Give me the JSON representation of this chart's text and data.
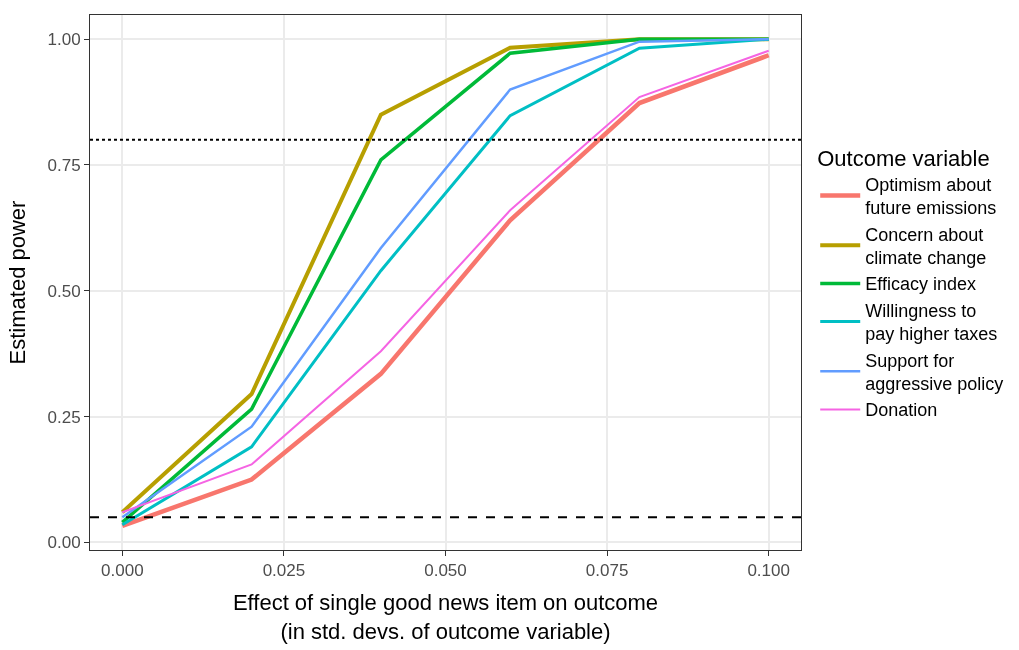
{
  "chart_data": {
    "type": "line",
    "xlabel": "Effect of single good news item on outcome\n(in std. devs. of outcome variable)",
    "ylabel": "Estimated power",
    "legend_title": "Outcome variable",
    "x": [
      0,
      0.02,
      0.04,
      0.06,
      0.08,
      0.1
    ],
    "series": [
      {
        "name": "Optimism about\nfuture emissions",
        "color": "#f8766d",
        "values": [
          0.033,
          0.125,
          0.335,
          0.64,
          0.873,
          0.968
        ]
      },
      {
        "name": "Concern about\nclimate change",
        "color": "#b79f00",
        "values": [
          0.06,
          0.295,
          0.85,
          0.983,
          1.0,
          1.0
        ]
      },
      {
        "name": "Efficacy index",
        "color": "#00ba38",
        "values": [
          0.04,
          0.265,
          0.76,
          0.972,
          1.0,
          1.0
        ]
      },
      {
        "name": "Willingness to\npay higher taxes",
        "color": "#00bfc4",
        "values": [
          0.035,
          0.19,
          0.54,
          0.848,
          0.982,
          1.0
        ]
      },
      {
        "name": "Support for\naggressive policy",
        "color": "#619cff",
        "values": [
          0.05,
          0.23,
          0.585,
          0.9,
          0.995,
          1.0
        ]
      },
      {
        "name": "Donation",
        "color": "#f564e3",
        "values": [
          0.06,
          0.155,
          0.38,
          0.66,
          0.885,
          0.977
        ]
      }
    ],
    "xlim": [
      -0.005,
      0.105
    ],
    "xticks": [
      {
        "value": 0,
        "label": "0.000"
      },
      {
        "value": 0.025,
        "label": "0.025"
      },
      {
        "value": 0.05,
        "label": "0.050"
      },
      {
        "value": 0.075,
        "label": "0.075"
      },
      {
        "value": 0.1,
        "label": "0.100"
      }
    ],
    "ylim": [
      -0.015,
      1.048
    ],
    "yticks": [
      {
        "value": 0,
        "label": "0.00"
      },
      {
        "value": 0.25,
        "label": "0.25"
      },
      {
        "value": 0.5,
        "label": "0.50"
      },
      {
        "value": 0.75,
        "label": "0.75"
      },
      {
        "value": 1,
        "label": "1.00"
      }
    ],
    "ref_lines": [
      {
        "axis": "y",
        "value": 0.8,
        "color": "#000000",
        "line_style": "dotted"
      },
      {
        "axis": "y",
        "value": 0.05,
        "color": "#000000",
        "line_style": "dashed"
      }
    ],
    "grid": true,
    "legend": "right",
    "marker": "none",
    "line_style": "solid"
  }
}
